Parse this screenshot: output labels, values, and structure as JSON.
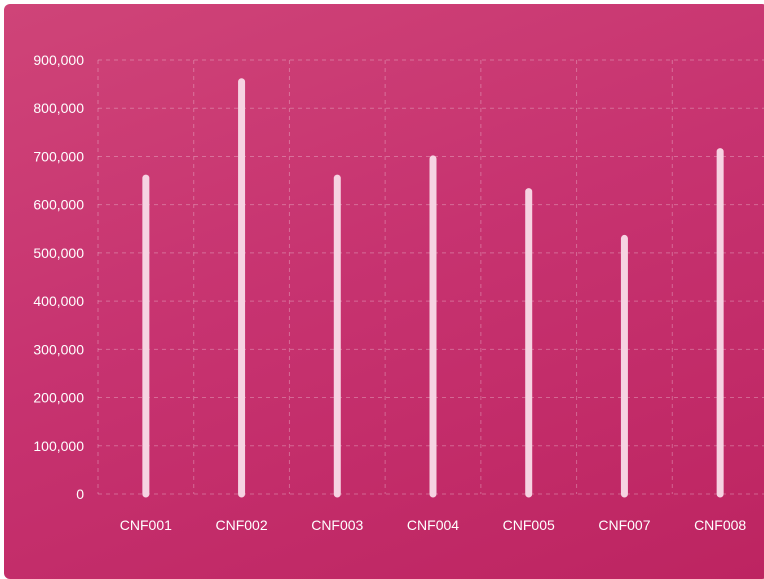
{
  "colors": {
    "background_top": "#cf4478",
    "background_bottom": "#bd2461",
    "bar": "#f6d3e2",
    "grid": "rgba(255,255,255,0.28)",
    "text": "#ffffff"
  },
  "chart_data": {
    "type": "bar",
    "categories": [
      "CNF001",
      "CNF002",
      "CNF003",
      "CNF004",
      "CNF005",
      "CNF007",
      "CNF008"
    ],
    "values": [
      655000,
      855000,
      655000,
      695000,
      627000,
      530000,
      710000
    ],
    "ylim": [
      0,
      900000
    ],
    "y_ticks": [
      "0",
      "100,000",
      "200,000",
      "300,000",
      "400,000",
      "500,000",
      "600,000",
      "700,000",
      "800,000",
      "900,000"
    ],
    "grid": true,
    "grid_style": "dashed"
  }
}
